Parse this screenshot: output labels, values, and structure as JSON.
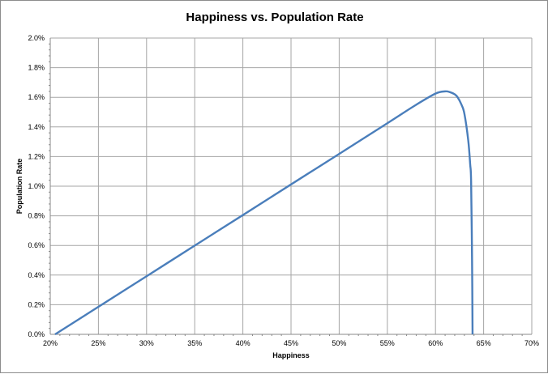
{
  "chart_data": {
    "type": "line",
    "title": "Happiness vs. Population Rate",
    "xlabel": "Happiness",
    "ylabel": "Population Rate",
    "xlim": [
      20,
      70
    ],
    "ylim": [
      0,
      2.0
    ],
    "x_ticks": [
      "20%",
      "25%",
      "30%",
      "35%",
      "40%",
      "45%",
      "50%",
      "55%",
      "60%",
      "65%",
      "70%"
    ],
    "y_ticks": [
      "0.0%",
      "0.2%",
      "0.4%",
      "0.6%",
      "0.8%",
      "1.0%",
      "1.2%",
      "1.4%",
      "1.6%",
      "1.8%",
      "2.0%"
    ],
    "grid": true,
    "legend": "none",
    "series": [
      {
        "name": "Population Rate",
        "color": "#4a7ebb",
        "x": [
          20.5,
          25,
          30,
          35,
          40,
          45,
          50,
          55,
          58,
          60,
          61,
          61.5,
          62,
          62.3,
          62.7,
          63.0,
          63.4,
          63.6,
          63.7,
          63.8,
          63.85
        ],
        "y": [
          0,
          0.186,
          0.392,
          0.599,
          0.805,
          1.012,
          1.218,
          1.425,
          1.55,
          1.625,
          1.64,
          1.635,
          1.62,
          1.6,
          1.55,
          1.49,
          1.31,
          1.15,
          1.03,
          0.49,
          0
        ]
      }
    ]
  }
}
